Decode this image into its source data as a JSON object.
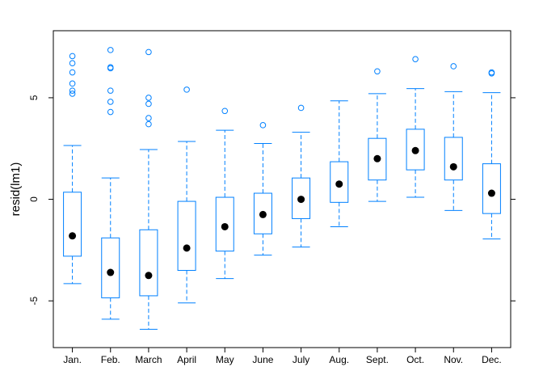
{
  "chart_data": {
    "type": "boxplot",
    "ylabel": "resid(lm1)",
    "xlabel": "",
    "title": "",
    "ylim": [
      -7.3,
      8.3
    ],
    "y_ticks": [
      -5,
      0,
      5
    ],
    "y_tick_labels": [
      "-5",
      "0",
      "5"
    ],
    "grid": false,
    "legend": "none",
    "box_color": "#0080ff",
    "median_color": "#000000",
    "categories": [
      "Jan.",
      "Feb.",
      "March",
      "April",
      "May",
      "June",
      "July",
      "Aug.",
      "Sept.",
      "Oct.",
      "Nov.",
      "Dec."
    ],
    "boxes": [
      {
        "lower_whisker": -4.15,
        "q1": -2.8,
        "median": -1.8,
        "q3": 0.35,
        "upper_whisker": 2.65,
        "outliers": [
          7.05,
          6.7,
          6.25,
          5.7,
          5.35,
          5.2
        ]
      },
      {
        "lower_whisker": -5.9,
        "q1": -4.85,
        "median": -3.6,
        "q3": -1.9,
        "upper_whisker": 1.05,
        "outliers": [
          7.35,
          6.5,
          6.45,
          5.35,
          4.8,
          4.3
        ]
      },
      {
        "lower_whisker": -6.4,
        "q1": -4.75,
        "median": -3.75,
        "q3": -1.5,
        "upper_whisker": 2.45,
        "outliers": [
          7.25,
          5.0,
          4.7,
          4.0,
          3.7
        ]
      },
      {
        "lower_whisker": -5.1,
        "q1": -3.5,
        "median": -2.4,
        "q3": -0.1,
        "upper_whisker": 2.85,
        "outliers": [
          5.4
        ]
      },
      {
        "lower_whisker": -3.9,
        "q1": -2.55,
        "median": -1.35,
        "q3": 0.1,
        "upper_whisker": 3.4,
        "outliers": [
          4.35
        ]
      },
      {
        "lower_whisker": -2.75,
        "q1": -1.7,
        "median": -0.75,
        "q3": 0.3,
        "upper_whisker": 2.75,
        "outliers": [
          3.65
        ]
      },
      {
        "lower_whisker": -2.35,
        "q1": -0.95,
        "median": 0.0,
        "q3": 1.05,
        "upper_whisker": 3.3,
        "outliers": [
          4.5
        ]
      },
      {
        "lower_whisker": -1.35,
        "q1": -0.15,
        "median": 0.75,
        "q3": 1.85,
        "upper_whisker": 4.85,
        "outliers": []
      },
      {
        "lower_whisker": -0.1,
        "q1": 0.95,
        "median": 2.0,
        "q3": 3.0,
        "upper_whisker": 5.2,
        "outliers": [
          6.3
        ]
      },
      {
        "lower_whisker": 0.1,
        "q1": 1.45,
        "median": 2.4,
        "q3": 3.45,
        "upper_whisker": 5.45,
        "outliers": [
          6.9
        ]
      },
      {
        "lower_whisker": -0.55,
        "q1": 0.95,
        "median": 1.6,
        "q3": 3.05,
        "upper_whisker": 5.3,
        "outliers": [
          6.55
        ]
      },
      {
        "lower_whisker": -1.95,
        "q1": -0.7,
        "median": 0.3,
        "q3": 1.75,
        "upper_whisker": 5.25,
        "outliers": [
          6.25,
          6.2
        ]
      }
    ]
  }
}
